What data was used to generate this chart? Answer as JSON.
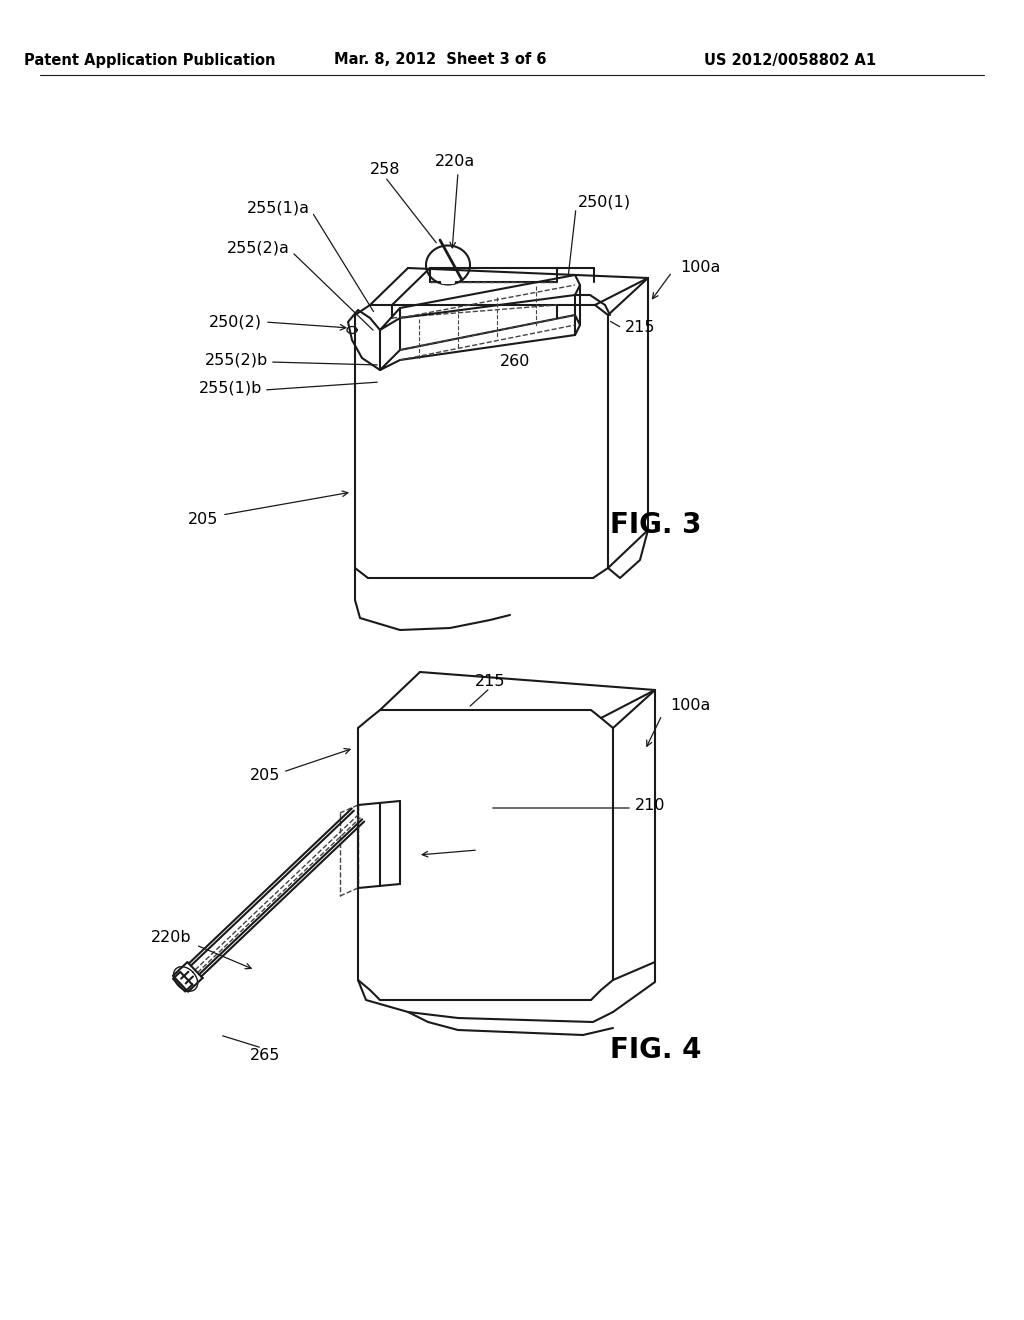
{
  "bg_color": "#ffffff",
  "header_left": "Patent Application Publication",
  "header_mid": "Mar. 8, 2012  Sheet 3 of 6",
  "header_right": "US 2012/0058802 A1",
  "fig3_label": "FIG. 3",
  "fig4_label": "FIG. 4",
  "line_color": "#1a1a1a",
  "dash_color": "#444444",
  "text_color": "#000000"
}
